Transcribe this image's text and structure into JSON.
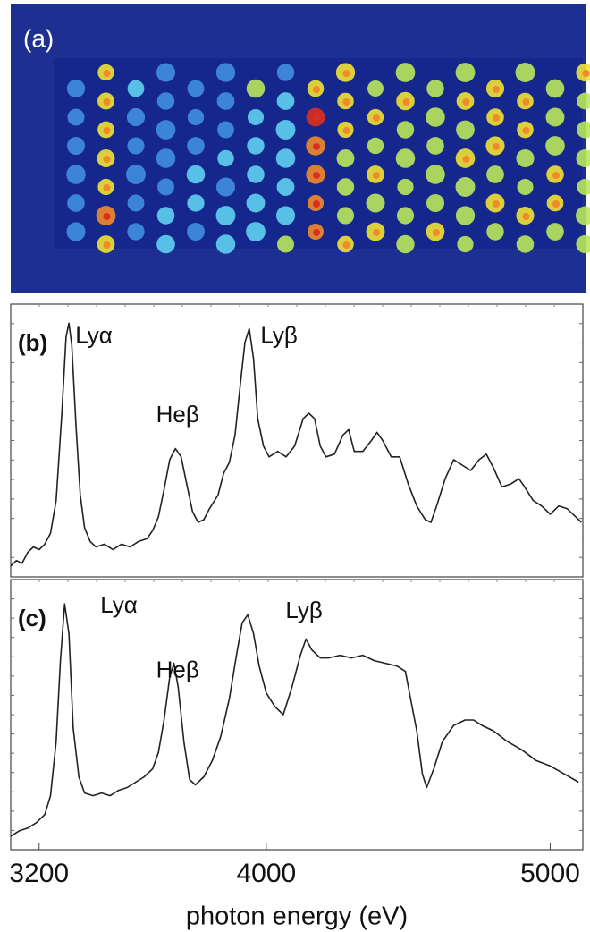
{
  "image_panel": {
    "label": "(a)"
  },
  "chart_data": [
    {
      "type": "line",
      "title": "(b)",
      "xlim": [
        3100,
        5115
      ],
      "ylim": [
        0,
        100
      ],
      "x": [
        3100,
        3120,
        3140,
        3160,
        3180,
        3200,
        3220,
        3240,
        3260,
        3280,
        3295,
        3305,
        3315,
        3330,
        3345,
        3360,
        3380,
        3400,
        3430,
        3460,
        3490,
        3520,
        3550,
        3580,
        3600,
        3620,
        3640,
        3660,
        3680,
        3700,
        3720,
        3740,
        3760,
        3780,
        3800,
        3830,
        3850,
        3870,
        3890,
        3910,
        3925,
        3940,
        3955,
        3970,
        3990,
        4010,
        4040,
        4070,
        4100,
        4130,
        4150,
        4170,
        4190,
        4210,
        4240,
        4270,
        4290,
        4310,
        4340,
        4370,
        4390,
        4410,
        4440,
        4470,
        4500,
        4530,
        4560,
        4580,
        4600,
        4630,
        4660,
        4690,
        4720,
        4750,
        4775,
        4800,
        4830,
        4860,
        4890,
        4910,
        4940,
        4970,
        5000,
        5030,
        5060,
        5090,
        5110
      ],
      "series": [
        {
          "color": "#222222",
          "values": [
            4,
            6,
            5,
            9,
            11,
            10,
            12,
            16,
            28,
            60,
            88,
            93,
            85,
            55,
            30,
            18,
            13,
            11,
            12,
            10,
            12,
            11,
            13,
            14,
            17,
            22,
            32,
            43,
            47,
            44,
            34,
            24,
            20,
            21,
            25,
            30,
            38,
            42,
            52,
            72,
            86,
            91,
            80,
            58,
            48,
            44,
            46,
            44,
            48,
            58,
            60,
            58,
            48,
            44,
            45,
            52,
            54,
            46,
            46,
            50,
            53,
            50,
            44,
            44,
            34,
            26,
            21,
            20,
            26,
            36,
            43,
            41,
            39,
            43,
            45,
            40,
            33,
            34,
            36,
            33,
            28,
            26,
            23,
            26,
            25,
            22,
            20
          ]
        }
      ],
      "annotations": [
        {
          "text": "Lyα",
          "x": 3393,
          "y": 88
        },
        {
          "text": "Heβ",
          "x": 3688,
          "y": 59
        },
        {
          "text": "Lyβ",
          "x": 4045,
          "y": 88
        }
      ]
    },
    {
      "type": "line",
      "title": "(c)",
      "xlim": [
        3100,
        5115
      ],
      "ylim": [
        0,
        100
      ],
      "xticks": [
        3200,
        4000,
        5000
      ],
      "xlabel": "photon energy (eV)",
      "x": [
        3100,
        3130,
        3160,
        3190,
        3220,
        3240,
        3260,
        3275,
        3290,
        3305,
        3320,
        3340,
        3360,
        3390,
        3420,
        3450,
        3480,
        3510,
        3540,
        3570,
        3600,
        3620,
        3640,
        3660,
        3675,
        3690,
        3710,
        3730,
        3750,
        3780,
        3810,
        3840,
        3870,
        3895,
        3915,
        3935,
        3955,
        3975,
        4000,
        4030,
        4060,
        4090,
        4120,
        4140,
        4160,
        4190,
        4220,
        4260,
        4300,
        4340,
        4380,
        4420,
        4460,
        4490,
        4510,
        4530,
        4550,
        4565,
        4590,
        4620,
        4660,
        4700,
        4730,
        4760,
        4800,
        4850,
        4900,
        4950,
        5000,
        5050,
        5100
      ],
      "series": [
        {
          "color": "#222222",
          "values": [
            5,
            7,
            8,
            10,
            13,
            20,
            40,
            70,
            91,
            80,
            45,
            27,
            21,
            20,
            21,
            20,
            22,
            23,
            25,
            27,
            30,
            36,
            48,
            64,
            69,
            60,
            40,
            26,
            24,
            27,
            33,
            42,
            56,
            72,
            84,
            87,
            80,
            68,
            58,
            53,
            50,
            60,
            72,
            78,
            74,
            71,
            71,
            72,
            71,
            72,
            70,
            69,
            68,
            66,
            55,
            44,
            28,
            23,
            30,
            40,
            46,
            48,
            48,
            46,
            44,
            40,
            37,
            33,
            31,
            28,
            25
          ]
        }
      ],
      "annotations": [
        {
          "text": "Lyα",
          "x": 3481,
          "y": 90
        },
        {
          "text": "Heβ",
          "x": 3688,
          "y": 66
        },
        {
          "text": "Lyβ",
          "x": 4133,
          "y": 88
        }
      ]
    }
  ]
}
